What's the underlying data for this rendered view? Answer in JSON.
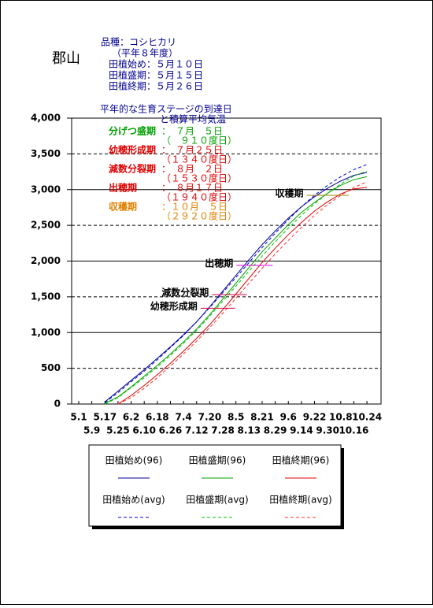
{
  "chart_data": {
    "type": "line",
    "location": "郡山",
    "info": [
      "品種：コシヒカリ",
      "（平年８年度）",
      "田植始め：５月１０日",
      "田植盛期：５月１５日",
      "田植終期：５月２６日"
    ],
    "subtitle": [
      "平年的な生育ステージの到達日",
      "と積算平均気温"
    ],
    "stage_info": [
      {
        "label": "分げつ盛期",
        "date": "：　７月　５日",
        "dd": "（　９１０度日）",
        "color": "#00a000"
      },
      {
        "label": "幼穂形成期",
        "date": "：　７月２５日",
        "dd": "（１３４０度日）",
        "color": "#e00000"
      },
      {
        "label": "減数分裂期",
        "date": "：　８月　２日",
        "dd": "（１５３０度日）",
        "color": "#e00000"
      },
      {
        "label": "出穂期",
        "date": "：　８月１７日",
        "dd": "（１９４０度日）",
        "color": "#e00000"
      },
      {
        "label": "収穫期",
        "date": "：１０月　５日",
        "dd": "（２９２０度日）",
        "color": "#e08000"
      }
    ],
    "stages": [
      {
        "label": "収穫期",
        "level": 2920,
        "color": "#a08000"
      },
      {
        "label": "出穂期",
        "level": 1940,
        "color": "#e000e0"
      },
      {
        "label": "減数分裂期",
        "level": 1530,
        "color": "#d00040"
      },
      {
        "label": "幼穂形成期",
        "level": 1340,
        "color": "#d00040"
      }
    ],
    "categories": [
      "5.1",
      "5.9",
      "5.17",
      "5.25",
      "6.2",
      "6.10",
      "6.18",
      "6.26",
      "7.4",
      "7.12",
      "7.20",
      "7.28",
      "8.5",
      "8.13",
      "8.21",
      "8.29",
      "9.6",
      "9.14",
      "9.22",
      "9.30",
      "10.8",
      "10.16",
      "10.24"
    ],
    "series": [
      {
        "name": "田植始め(96)",
        "color": "#000090",
        "dash": false,
        "values": [
          null,
          null,
          30,
          180,
          330,
          480,
          640,
          800,
          970,
          1150,
          1360,
          1580,
          1800,
          2020,
          2230,
          2420,
          2600,
          2760,
          2900,
          3020,
          3120,
          3200,
          3240
        ]
      },
      {
        "name": "田植盛期(96)",
        "color": "#00a000",
        "dash": false,
        "values": [
          null,
          null,
          10,
          100,
          240,
          390,
          540,
          700,
          870,
          1050,
          1250,
          1470,
          1690,
          1910,
          2130,
          2320,
          2510,
          2680,
          2820,
          2950,
          3060,
          3140,
          3180
        ]
      },
      {
        "name": "田植終期(96)",
        "color": "#e00000",
        "dash": false,
        "values": [
          null,
          null,
          null,
          0,
          120,
          260,
          410,
          570,
          740,
          920,
          1110,
          1320,
          1540,
          1760,
          1980,
          2180,
          2370,
          2540,
          2700,
          2830,
          2940,
          3010,
          3030
        ]
      },
      {
        "name": "田植始め(avg)",
        "color": "#0000d0",
        "dash": true,
        "values": [
          null,
          null,
          20,
          160,
          310,
          460,
          620,
          790,
          960,
          1150,
          1350,
          1560,
          1770,
          1980,
          2190,
          2390,
          2580,
          2760,
          2920,
          3060,
          3180,
          3280,
          3350
        ]
      },
      {
        "name": "田植盛期(avg)",
        "color": "#00c000",
        "dash": true,
        "values": [
          null,
          null,
          0,
          90,
          230,
          370,
          520,
          680,
          850,
          1030,
          1230,
          1440,
          1650,
          1860,
          2070,
          2270,
          2460,
          2640,
          2800,
          2950,
          3080,
          3190,
          3260
        ]
      },
      {
        "name": "田植終期(avg)",
        "color": "#ff3030",
        "dash": true,
        "values": [
          null,
          null,
          null,
          0,
          90,
          220,
          370,
          530,
          700,
          880,
          1070,
          1270,
          1480,
          1690,
          1900,
          2100,
          2290,
          2470,
          2640,
          2790,
          2920,
          3030,
          3110
        ]
      }
    ],
    "ylim": [
      0,
      4000
    ],
    "yticks": [
      0,
      500,
      {
        "value": 1000,
        "label": "1,000"
      },
      {
        "value": 1500,
        "label": "1,500"
      },
      {
        "value": 2000,
        "label": "2,000"
      },
      {
        "value": 2500,
        "label": "2,500"
      },
      {
        "value": 3000,
        "label": "3,000"
      },
      {
        "value": 3500,
        "label": "3,500"
      },
      {
        "value": 4000,
        "label": "4,000"
      }
    ],
    "grid": true
  }
}
